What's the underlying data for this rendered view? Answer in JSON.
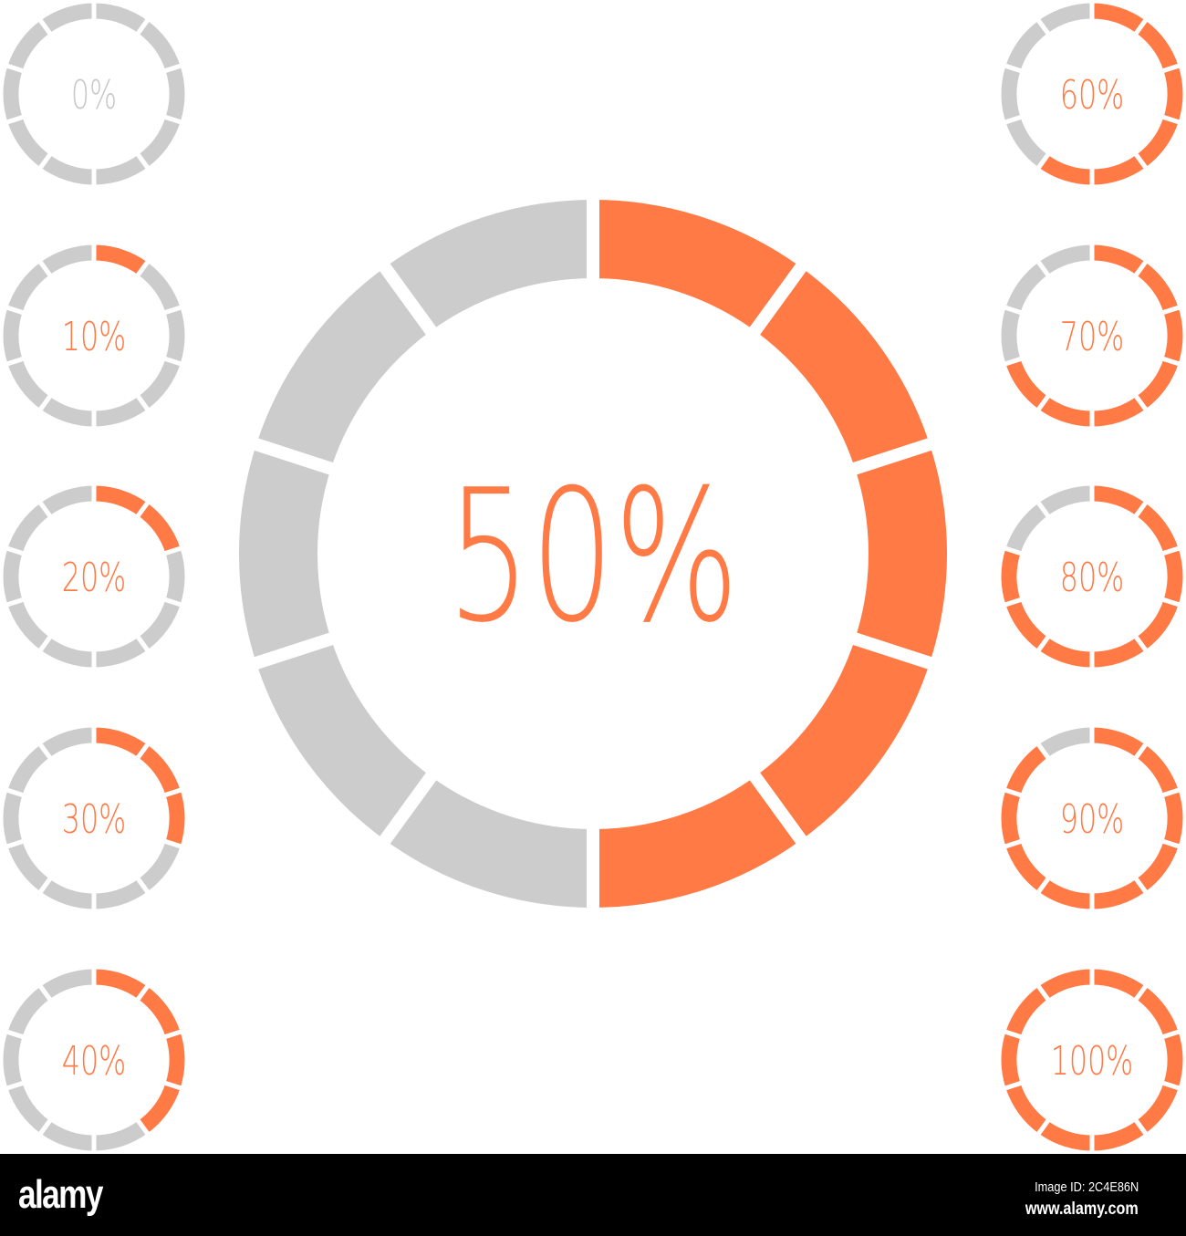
{
  "chart_data": {
    "type": "segmented-ring-progress",
    "segments_per_ring": 10,
    "colors": {
      "filled": "#FF7A45",
      "empty": "#CCCCCC",
      "zero_label": "#C8C8C8"
    },
    "main": {
      "value": 50,
      "label": "50%"
    },
    "left_column": [
      {
        "value": 0,
        "label": "0%"
      },
      {
        "value": 10,
        "label": "10%"
      },
      {
        "value": 20,
        "label": "20%"
      },
      {
        "value": 30,
        "label": "30%"
      },
      {
        "value": 40,
        "label": "40%"
      }
    ],
    "right_column": [
      {
        "value": 60,
        "label": "60%"
      },
      {
        "value": 70,
        "label": "70%"
      },
      {
        "value": 80,
        "label": "80%"
      },
      {
        "value": 90,
        "label": "90%"
      },
      {
        "value": 100,
        "label": "100%"
      }
    ]
  },
  "footer": {
    "logo": "alamy",
    "image_id": "Image ID: 2C4E86N",
    "site": "www.alamy.com"
  }
}
